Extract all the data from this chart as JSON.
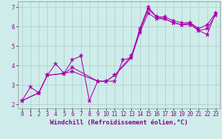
{
  "xlabel": "Windchill (Refroidissement éolien,°C)",
  "ylabel": "",
  "background_color": "#ceecea",
  "line_color": "#aa00aa",
  "grid_color": "#aacccc",
  "xlim": [
    -0.5,
    23.5
  ],
  "ylim": [
    1.8,
    7.3
  ],
  "xticks": [
    0,
    1,
    2,
    3,
    4,
    5,
    6,
    7,
    8,
    9,
    10,
    11,
    12,
    13,
    14,
    15,
    16,
    17,
    18,
    19,
    20,
    21,
    22,
    23
  ],
  "yticks": [
    2,
    3,
    4,
    5,
    6,
    7
  ],
  "series1_x": [
    0,
    1,
    2,
    3,
    4,
    5,
    6,
    7,
    8,
    9,
    10,
    11,
    12,
    13,
    14,
    15,
    16,
    17,
    18,
    19,
    20,
    21,
    22,
    23
  ],
  "series1_y": [
    2.2,
    2.9,
    2.6,
    3.5,
    4.1,
    3.6,
    4.3,
    4.5,
    2.2,
    3.2,
    3.2,
    3.2,
    4.3,
    4.4,
    5.9,
    7.0,
    6.5,
    6.4,
    6.2,
    6.1,
    6.2,
    5.8,
    5.6,
    6.7
  ],
  "series2_x": [
    0,
    2,
    3,
    5,
    6,
    9,
    10,
    11,
    13,
    14,
    15,
    16,
    17,
    18,
    19,
    20,
    21,
    22,
    23
  ],
  "series2_y": [
    2.2,
    2.6,
    3.5,
    3.6,
    3.9,
    3.2,
    3.2,
    3.5,
    4.5,
    5.8,
    6.9,
    6.5,
    6.5,
    6.3,
    6.2,
    6.2,
    5.9,
    6.1,
    6.7
  ],
  "series3_x": [
    0,
    2,
    3,
    5,
    6,
    9,
    10,
    11,
    13,
    14,
    15,
    16,
    17,
    18,
    19,
    20,
    21,
    22,
    23
  ],
  "series3_y": [
    2.2,
    2.6,
    3.5,
    3.6,
    3.7,
    3.2,
    3.2,
    3.5,
    4.4,
    5.7,
    6.7,
    6.4,
    6.4,
    6.2,
    6.1,
    6.1,
    5.8,
    5.9,
    6.6
  ],
  "xlabel_fontsize": 6.5,
  "tick_fontsize": 5.5,
  "marker_size": 3,
  "line_width": 0.8
}
